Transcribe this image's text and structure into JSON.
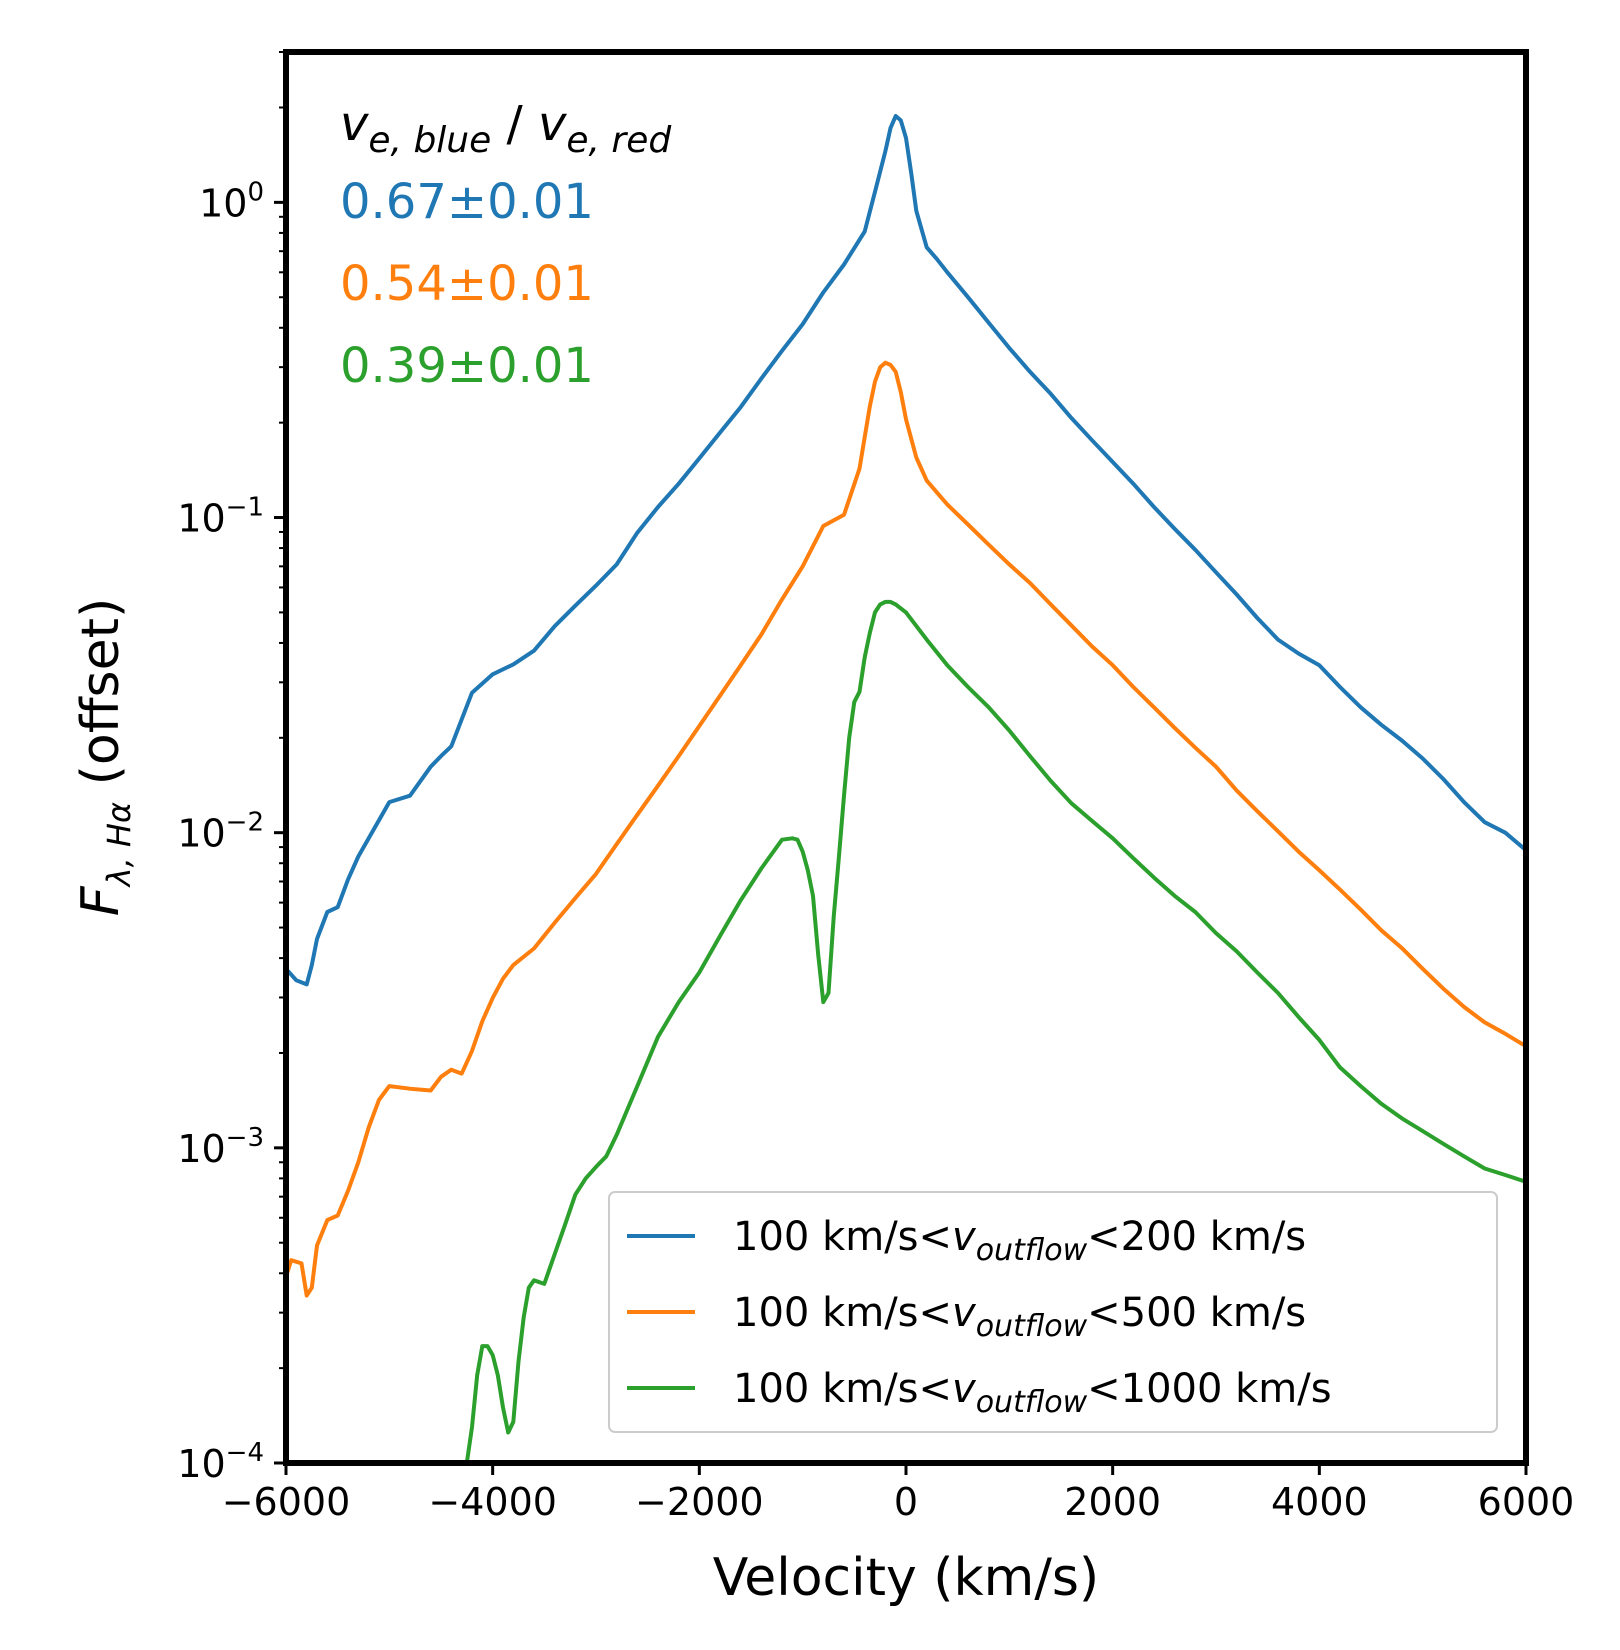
{
  "chart_data": {
    "type": "line",
    "xlabel": "Velocity (km/s)",
    "ylabel": {
      "base": "F",
      "subscript": "λ, Hα",
      "suffix": " (offset)"
    },
    "xlim": [
      -6000,
      6000
    ],
    "ylim": [
      0.0001,
      3.0
    ],
    "y_scale": "log",
    "x_ticks": [
      {
        "value": -6000,
        "label": "−6000"
      },
      {
        "value": -4000,
        "label": "−4000"
      },
      {
        "value": -2000,
        "label": "−2000"
      },
      {
        "value": 0,
        "label": "0"
      },
      {
        "value": 2000,
        "label": "2000"
      },
      {
        "value": 4000,
        "label": "4000"
      },
      {
        "value": 6000,
        "label": "6000"
      }
    ],
    "y_ticks": [
      {
        "value": 1,
        "base": "10",
        "exp": "0"
      },
      {
        "value": 0.1,
        "base": "10",
        "exp": "−1"
      },
      {
        "value": 0.01,
        "base": "10",
        "exp": "−2"
      },
      {
        "value": 0.001,
        "base": "10",
        "exp": "−3"
      },
      {
        "value": 0.0001,
        "base": "10",
        "exp": "−4"
      }
    ],
    "legend_position": "lower-right",
    "annotation": {
      "header": {
        "v": "v",
        "sub1": "e, blue",
        "sep": " / ",
        "sub2": "e, red"
      },
      "ratios": [
        {
          "text": "0.67±0.01",
          "color": "#1f77b4"
        },
        {
          "text": "0.54±0.01",
          "color": "#ff7f0e"
        },
        {
          "text": "0.39±0.01",
          "color": "#2ca02c"
        }
      ]
    },
    "series": [
      {
        "legend": {
          "pre": "100 km/s<",
          "v": "v",
          "sub": "outflow",
          "post": "<200 km/s"
        },
        "color": "#1f77b4",
        "x": [
          -6000,
          -5900,
          -5800,
          -5750,
          -5700,
          -5600,
          -5500,
          -5400,
          -5300,
          -5200,
          -5000,
          -4800,
          -4600,
          -4500,
          -4400,
          -4200,
          -4000,
          -3800,
          -3600,
          -3400,
          -3200,
          -3000,
          -2800,
          -2600,
          -2400,
          -2200,
          -2000,
          -1800,
          -1600,
          -1400,
          -1200,
          -1000,
          -800,
          -600,
          -400,
          -300,
          -200,
          -150,
          -100,
          -50,
          0,
          50,
          100,
          200,
          300,
          400,
          600,
          800,
          1000,
          1200,
          1400,
          1600,
          1800,
          2000,
          2200,
          2400,
          2600,
          2800,
          3000,
          3200,
          3400,
          3600,
          3800,
          4000,
          4200,
          4400,
          4600,
          4800,
          5000,
          5200,
          5400,
          5600,
          5800,
          6000
        ],
        "y": [
          0.0037,
          0.0034,
          0.0033,
          0.0038,
          0.0046,
          0.0056,
          0.0058,
          0.0071,
          0.0084,
          0.0096,
          0.0125,
          0.0131,
          0.0162,
          0.0175,
          0.0188,
          0.0278,
          0.0318,
          0.0342,
          0.0378,
          0.0452,
          0.0525,
          0.0608,
          0.071,
          0.0895,
          0.108,
          0.128,
          0.154,
          0.186,
          0.224,
          0.276,
          0.338,
          0.411,
          0.518,
          0.635,
          0.808,
          1.08,
          1.45,
          1.72,
          1.88,
          1.82,
          1.6,
          1.24,
          0.94,
          0.72,
          0.66,
          0.6,
          0.5,
          0.415,
          0.345,
          0.29,
          0.247,
          0.207,
          0.176,
          0.15,
          0.128,
          0.108,
          0.092,
          0.079,
          0.067,
          0.057,
          0.048,
          0.041,
          0.037,
          0.034,
          0.029,
          0.025,
          0.022,
          0.0196,
          0.0172,
          0.0148,
          0.0125,
          0.0108,
          0.01,
          0.0088
        ]
      },
      {
        "legend": {
          "pre": "100 km/s<",
          "v": "v",
          "sub": "outflow",
          "post": "<500 km/s"
        },
        "color": "#ff7f0e",
        "x": [
          -6000,
          -5950,
          -5850,
          -5800,
          -5750,
          -5700,
          -5600,
          -5500,
          -5400,
          -5300,
          -5200,
          -5100,
          -5000,
          -4800,
          -4600,
          -4500,
          -4400,
          -4300,
          -4200,
          -4100,
          -4000,
          -3900,
          -3800,
          -3600,
          -3400,
          -3200,
          -3000,
          -2800,
          -2600,
          -2400,
          -2200,
          -2000,
          -1800,
          -1600,
          -1400,
          -1200,
          -1000,
          -800,
          -600,
          -450,
          -350,
          -300,
          -250,
          -200,
          -150,
          -100,
          -50,
          0,
          100,
          200,
          300,
          400,
          600,
          800,
          1000,
          1200,
          1400,
          1600,
          1800,
          2000,
          2200,
          2400,
          2600,
          2800,
          3000,
          3200,
          3400,
          3600,
          3800,
          4000,
          4200,
          4400,
          4600,
          4800,
          5000,
          5200,
          5400,
          5600,
          5800,
          6000
        ],
        "y": [
          0.00039,
          0.00044,
          0.00043,
          0.00034,
          0.00036,
          0.00049,
          0.00059,
          0.00061,
          0.00073,
          0.0009,
          0.00116,
          0.00142,
          0.00157,
          0.00154,
          0.00152,
          0.00168,
          0.00177,
          0.00172,
          0.00203,
          0.00252,
          0.00299,
          0.00344,
          0.0038,
          0.00429,
          0.00518,
          0.0062,
          0.0074,
          0.0092,
          0.0114,
          0.0141,
          0.0175,
          0.0218,
          0.0272,
          0.034,
          0.0425,
          0.055,
          0.07,
          0.094,
          0.102,
          0.143,
          0.225,
          0.27,
          0.3,
          0.31,
          0.305,
          0.29,
          0.25,
          0.205,
          0.155,
          0.131,
          0.12,
          0.11,
          0.095,
          0.082,
          0.071,
          0.062,
          0.053,
          0.0455,
          0.039,
          0.034,
          0.029,
          0.025,
          0.0215,
          0.0186,
          0.0162,
          0.0136,
          0.0117,
          0.0101,
          0.0087,
          0.0076,
          0.0066,
          0.0057,
          0.0049,
          0.0043,
          0.0037,
          0.0032,
          0.0028,
          0.0025,
          0.0023,
          0.0021
        ]
      },
      {
        "legend": {
          "pre": "100 km/s<",
          "v": "v",
          "sub": "outflow",
          "post": "<1000 km/s"
        },
        "color": "#2ca02c",
        "x": [
          -4250,
          -4200,
          -4150,
          -4100,
          -4050,
          -4000,
          -3950,
          -3900,
          -3850,
          -3800,
          -3750,
          -3700,
          -3650,
          -3600,
          -3500,
          -3400,
          -3300,
          -3200,
          -3100,
          -3000,
          -2900,
          -2800,
          -2600,
          -2400,
          -2200,
          -2000,
          -1800,
          -1600,
          -1400,
          -1200,
          -1100,
          -1050,
          -1000,
          -950,
          -900,
          -850,
          -800,
          -750,
          -700,
          -650,
          -600,
          -550,
          -500,
          -450,
          -400,
          -350,
          -300,
          -250,
          -200,
          -150,
          -100,
          0,
          200,
          400,
          600,
          800,
          1000,
          1200,
          1400,
          1600,
          1800,
          2000,
          2200,
          2400,
          2600,
          2800,
          3000,
          3200,
          3400,
          3600,
          3800,
          4000,
          4200,
          4400,
          4600,
          4800,
          5000,
          5200,
          5400,
          5600,
          5800,
          6000
        ],
        "y": [
          0.0001,
          0.00013,
          0.00019,
          0.000235,
          0.000235,
          0.00022,
          0.00019,
          0.00015,
          0.000125,
          0.000135,
          0.00021,
          0.00029,
          0.00036,
          0.00038,
          0.00037,
          0.00046,
          0.00057,
          0.00071,
          0.0008,
          0.00087,
          0.00094,
          0.0011,
          0.00157,
          0.00225,
          0.0029,
          0.0036,
          0.0047,
          0.0061,
          0.0077,
          0.0095,
          0.0096,
          0.0095,
          0.0087,
          0.0076,
          0.0063,
          0.0041,
          0.0029,
          0.0031,
          0.0054,
          0.0083,
          0.0131,
          0.02,
          0.026,
          0.028,
          0.036,
          0.043,
          0.05,
          0.053,
          0.054,
          0.054,
          0.053,
          0.05,
          0.041,
          0.034,
          0.029,
          0.025,
          0.0211,
          0.0175,
          0.0146,
          0.0124,
          0.0109,
          0.0096,
          0.0083,
          0.0072,
          0.0063,
          0.0056,
          0.0048,
          0.0042,
          0.0036,
          0.0031,
          0.0026,
          0.0022,
          0.0018,
          0.00157,
          0.00138,
          0.00124,
          0.00113,
          0.00103,
          0.00094,
          0.00086,
          0.00082,
          0.00078
        ]
      }
    ]
  }
}
